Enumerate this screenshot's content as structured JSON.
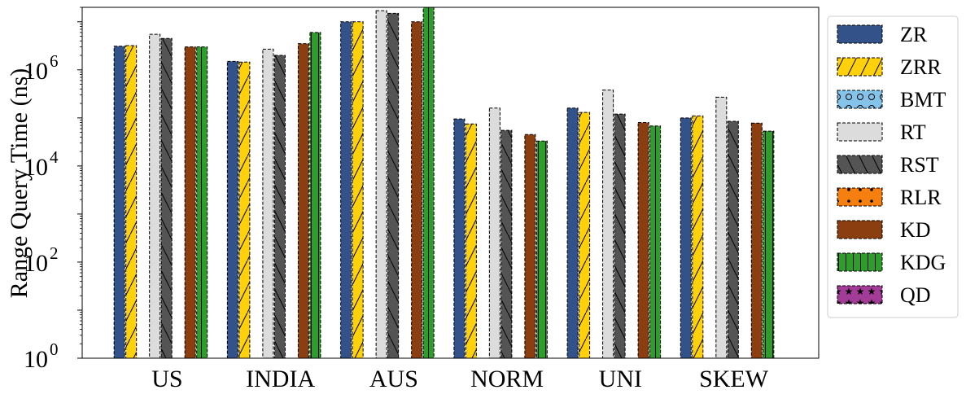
{
  "chart_data": {
    "type": "bar",
    "title": "",
    "xlabel": "",
    "ylabel": "Range Query Time (ns)",
    "yscale": "log",
    "ylim": [
      1,
      20000000
    ],
    "y_ticks": [
      {
        "value": 1,
        "base": "10",
        "exp": "0"
      },
      {
        "value": 100,
        "base": "10",
        "exp": "2"
      },
      {
        "value": 10000,
        "base": "10",
        "exp": "4"
      },
      {
        "value": 1000000,
        "base": "10",
        "exp": "6"
      }
    ],
    "grid": false,
    "legend_position": "right, outside the axes",
    "categories": [
      "US",
      "INDIA",
      "AUS",
      "NORM",
      "UNI",
      "SKEW"
    ],
    "series": [
      {
        "name": "ZR",
        "color": "#335289",
        "pattern": "none",
        "values": [
          3100000,
          1500000,
          10000000,
          95000,
          160000,
          100000
        ]
      },
      {
        "name": "ZRR",
        "color": "#fed10a",
        "pattern": "slash",
        "values": [
          3200000,
          1450000,
          10000000,
          75000,
          130000,
          110000
        ]
      },
      {
        "name": "BMT",
        "color": "#85c4ea",
        "pattern": "circles",
        "values": [
          null,
          null,
          null,
          null,
          null,
          null
        ]
      },
      {
        "name": "RT",
        "color": "#dcdcdc",
        "pattern": "none",
        "values": [
          5500000,
          2700000,
          17000000,
          160000,
          380000,
          270000
        ]
      },
      {
        "name": "RST",
        "color": "#545454",
        "pattern": "backslash",
        "values": [
          4500000,
          2000000,
          15000000,
          55000,
          120000,
          85000
        ]
      },
      {
        "name": "RLR",
        "color": "#f57f0f",
        "pattern": "dots",
        "values": [
          null,
          null,
          null,
          null,
          null,
          null
        ]
      },
      {
        "name": "KD",
        "color": "#8b3e0f",
        "pattern": "none",
        "values": [
          3000000,
          3500000,
          10000000,
          45000,
          80000,
          78000
        ]
      },
      {
        "name": "KDG",
        "color": "#2f9d2b",
        "pattern": "vertical",
        "values": [
          3000000,
          6000000,
          20000000,
          33000,
          68000,
          53000
        ]
      },
      {
        "name": "QD",
        "color": "#a23c96",
        "pattern": "stars",
        "values": [
          null,
          null,
          null,
          null,
          null,
          null
        ]
      }
    ]
  }
}
